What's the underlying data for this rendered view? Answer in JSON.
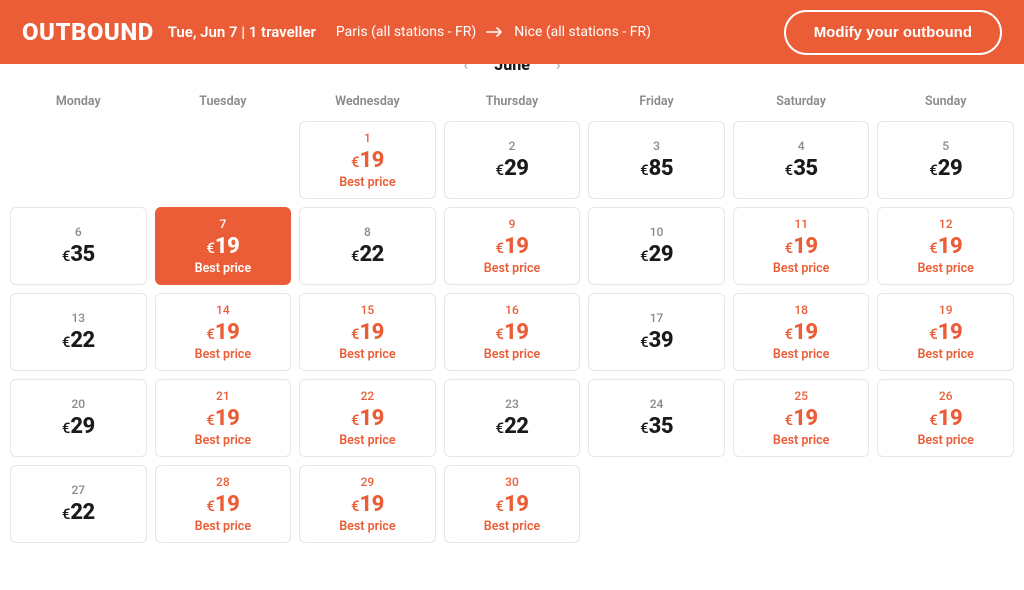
{
  "colors": {
    "accent": "#eb5d37",
    "text_dark": "#1a1a1a",
    "text_muted": "#8a8a8a",
    "border": "#e6e6e6",
    "bg": "#ffffff"
  },
  "header": {
    "title": "OUTBOUND",
    "date_summary": "Tue, Jun 7 | 1 traveller",
    "origin": "Paris (all stations - FR)",
    "destination": "Nice (all stations - FR)",
    "modify_label": "Modify your outbound"
  },
  "month_nav": {
    "label": "June"
  },
  "calendar": {
    "currency": "€",
    "best_price_label": "Best price",
    "weekday_labels": [
      "Monday",
      "Tuesday",
      "Wednesday",
      "Thursday",
      "Friday",
      "Saturday",
      "Sunday"
    ],
    "leading_blanks": 2,
    "days": [
      {
        "n": 1,
        "price": 19,
        "best": true,
        "selected": false
      },
      {
        "n": 2,
        "price": 29,
        "best": false,
        "selected": false
      },
      {
        "n": 3,
        "price": 85,
        "best": false,
        "selected": false
      },
      {
        "n": 4,
        "price": 35,
        "best": false,
        "selected": false
      },
      {
        "n": 5,
        "price": 29,
        "best": false,
        "selected": false
      },
      {
        "n": 6,
        "price": 35,
        "best": false,
        "selected": false
      },
      {
        "n": 7,
        "price": 19,
        "best": true,
        "selected": true
      },
      {
        "n": 8,
        "price": 22,
        "best": false,
        "selected": false
      },
      {
        "n": 9,
        "price": 19,
        "best": true,
        "selected": false
      },
      {
        "n": 10,
        "price": 29,
        "best": false,
        "selected": false
      },
      {
        "n": 11,
        "price": 19,
        "best": true,
        "selected": false
      },
      {
        "n": 12,
        "price": 19,
        "best": true,
        "selected": false
      },
      {
        "n": 13,
        "price": 22,
        "best": false,
        "selected": false
      },
      {
        "n": 14,
        "price": 19,
        "best": true,
        "selected": false
      },
      {
        "n": 15,
        "price": 19,
        "best": true,
        "selected": false
      },
      {
        "n": 16,
        "price": 19,
        "best": true,
        "selected": false
      },
      {
        "n": 17,
        "price": 39,
        "best": false,
        "selected": false
      },
      {
        "n": 18,
        "price": 19,
        "best": true,
        "selected": false
      },
      {
        "n": 19,
        "price": 19,
        "best": true,
        "selected": false
      },
      {
        "n": 20,
        "price": 29,
        "best": false,
        "selected": false
      },
      {
        "n": 21,
        "price": 19,
        "best": true,
        "selected": false
      },
      {
        "n": 22,
        "price": 19,
        "best": true,
        "selected": false
      },
      {
        "n": 23,
        "price": 22,
        "best": false,
        "selected": false
      },
      {
        "n": 24,
        "price": 35,
        "best": false,
        "selected": false
      },
      {
        "n": 25,
        "price": 19,
        "best": true,
        "selected": false
      },
      {
        "n": 26,
        "price": 19,
        "best": true,
        "selected": false
      },
      {
        "n": 27,
        "price": 22,
        "best": false,
        "selected": false
      },
      {
        "n": 28,
        "price": 19,
        "best": true,
        "selected": false
      },
      {
        "n": 29,
        "price": 19,
        "best": true,
        "selected": false
      },
      {
        "n": 30,
        "price": 19,
        "best": true,
        "selected": false
      }
    ]
  }
}
